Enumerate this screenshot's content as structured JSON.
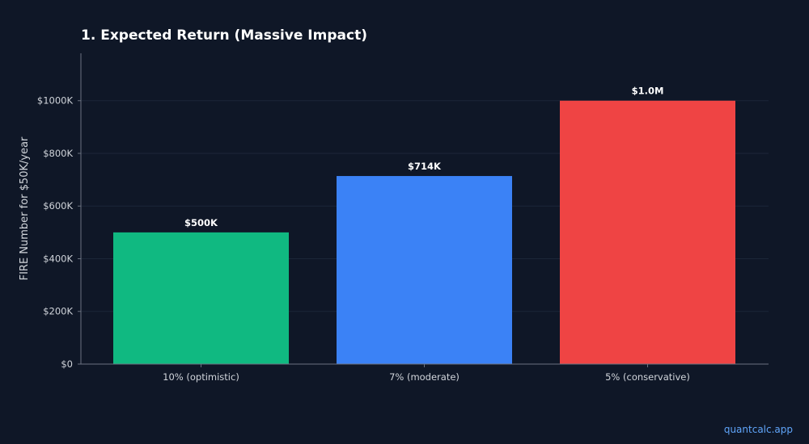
{
  "chart_data": {
    "type": "bar",
    "title": "1. Expected Return (Massive Impact)",
    "xlabel": "",
    "ylabel": "FIRE Number for $50K/year",
    "categories": [
      "10% (optimistic)",
      "7% (moderate)",
      "5% (conservative)"
    ],
    "values": [
      500000,
      714000,
      1000000
    ],
    "value_labels": [
      "$500K",
      "$714K",
      "$1.0M"
    ],
    "colors": [
      "#10b981",
      "#3b82f6",
      "#ef4444"
    ],
    "ylim": [
      0,
      1180000
    ],
    "yticks": [
      0,
      200000,
      400000,
      600000,
      800000,
      1000000
    ],
    "ytick_labels": [
      "$0",
      "$200K",
      "$400K",
      "$600K",
      "$800K",
      "$1000K"
    ],
    "grid": true
  },
  "watermark": "quantcalc.app"
}
